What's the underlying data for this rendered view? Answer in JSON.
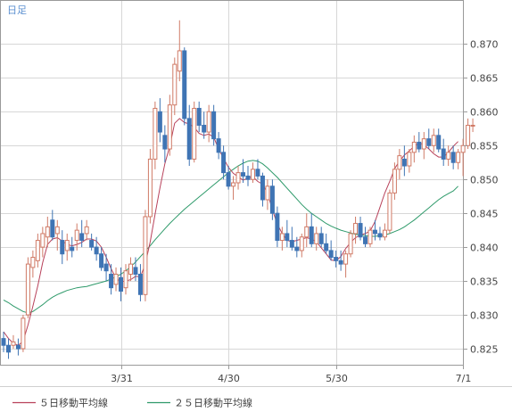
{
  "chart_data": {
    "type": "candlestick",
    "period_label": "日足",
    "x_tick_labels": [
      "3/31",
      "4/30",
      "5/30",
      "7/1"
    ],
    "y_ticks": [
      0.825,
      0.83,
      0.835,
      0.84,
      0.845,
      0.85,
      0.855,
      0.86,
      0.865,
      0.87
    ],
    "y_tick_labels": [
      "0.825",
      "0.830",
      "0.835",
      "0.840",
      "0.845",
      "0.850",
      "0.855",
      "0.860",
      "0.865",
      "0.870"
    ],
    "ylim": [
      0.8225,
      0.8765
    ],
    "grid": true,
    "legend_position": "bottom-left",
    "colors": {
      "up": "#d07a66",
      "down": "#3f74b4",
      "ma5": "#b8415a",
      "ma25": "#2e9a6a",
      "grid": "#d7d7d7",
      "frame": "#9a9a9a"
    },
    "series": [
      {
        "name": "５日移動平均線",
        "color": "#b8415a"
      },
      {
        "name": "２５日移動平均線",
        "color": "#2e9a6a"
      }
    ],
    "candles": [
      [
        0.8265,
        0.8275,
        0.8245,
        0.8255
      ],
      [
        0.8255,
        0.8265,
        0.8235,
        0.8245
      ],
      [
        0.8255,
        0.827,
        0.825,
        0.826
      ],
      [
        0.8255,
        0.8265,
        0.824,
        0.825
      ],
      [
        0.825,
        0.83,
        0.8245,
        0.8295
      ],
      [
        0.83,
        0.8385,
        0.8295,
        0.8375
      ],
      [
        0.837,
        0.8395,
        0.8355,
        0.8385
      ],
      [
        0.838,
        0.842,
        0.837,
        0.841
      ],
      [
        0.84,
        0.843,
        0.8385,
        0.842
      ],
      [
        0.8415,
        0.8445,
        0.84,
        0.843
      ],
      [
        0.844,
        0.8455,
        0.841,
        0.8415
      ],
      [
        0.842,
        0.844,
        0.8395,
        0.843
      ],
      [
        0.841,
        0.8425,
        0.8375,
        0.839
      ],
      [
        0.8395,
        0.842,
        0.838,
        0.841
      ],
      [
        0.84,
        0.8415,
        0.8385,
        0.8395
      ],
      [
        0.841,
        0.8435,
        0.8395,
        0.8425
      ],
      [
        0.842,
        0.844,
        0.84,
        0.841
      ],
      [
        0.842,
        0.844,
        0.841,
        0.843
      ],
      [
        0.841,
        0.842,
        0.8395,
        0.84
      ],
      [
        0.84,
        0.8415,
        0.838,
        0.839
      ],
      [
        0.839,
        0.84,
        0.8365,
        0.837
      ],
      [
        0.8375,
        0.839,
        0.835,
        0.8365
      ],
      [
        0.836,
        0.8375,
        0.833,
        0.834
      ],
      [
        0.8345,
        0.837,
        0.8335,
        0.836
      ],
      [
        0.8355,
        0.837,
        0.832,
        0.8335
      ],
      [
        0.834,
        0.8375,
        0.833,
        0.8365
      ],
      [
        0.836,
        0.8385,
        0.835,
        0.8375
      ],
      [
        0.837,
        0.8385,
        0.835,
        0.836
      ],
      [
        0.836,
        0.8375,
        0.832,
        0.833
      ],
      [
        0.833,
        0.8455,
        0.832,
        0.8445
      ],
      [
        0.8445,
        0.8545,
        0.8435,
        0.853
      ],
      [
        0.853,
        0.8615,
        0.8515,
        0.8605
      ],
      [
        0.86,
        0.862,
        0.8555,
        0.857
      ],
      [
        0.8565,
        0.858,
        0.8525,
        0.8545
      ],
      [
        0.8545,
        0.8625,
        0.8535,
        0.861
      ],
      [
        0.861,
        0.868,
        0.8595,
        0.867
      ],
      [
        0.866,
        0.8735,
        0.8645,
        0.869
      ],
      [
        0.869,
        0.8695,
        0.858,
        0.859
      ],
      [
        0.859,
        0.861,
        0.852,
        0.853
      ],
      [
        0.853,
        0.8615,
        0.8525,
        0.8605
      ],
      [
        0.8605,
        0.8615,
        0.857,
        0.858
      ],
      [
        0.858,
        0.86,
        0.856,
        0.857
      ],
      [
        0.857,
        0.861,
        0.8555,
        0.86
      ],
      [
        0.86,
        0.861,
        0.855,
        0.856
      ],
      [
        0.856,
        0.857,
        0.853,
        0.854
      ],
      [
        0.854,
        0.855,
        0.85,
        0.851
      ],
      [
        0.851,
        0.852,
        0.8485,
        0.849
      ],
      [
        0.849,
        0.8505,
        0.847,
        0.8495
      ],
      [
        0.8495,
        0.852,
        0.8485,
        0.851
      ],
      [
        0.851,
        0.853,
        0.8495,
        0.8505
      ],
      [
        0.8505,
        0.852,
        0.849,
        0.85
      ],
      [
        0.85,
        0.8525,
        0.8495,
        0.8515
      ],
      [
        0.8515,
        0.853,
        0.85,
        0.8505
      ],
      [
        0.8505,
        0.851,
        0.846,
        0.847
      ],
      [
        0.847,
        0.85,
        0.8455,
        0.849
      ],
      [
        0.849,
        0.85,
        0.844,
        0.845
      ],
      [
        0.845,
        0.846,
        0.84,
        0.841
      ],
      [
        0.841,
        0.843,
        0.8395,
        0.842
      ],
      [
        0.842,
        0.844,
        0.84,
        0.841
      ],
      [
        0.841,
        0.843,
        0.8395,
        0.84
      ],
      [
        0.84,
        0.8415,
        0.8385,
        0.8395
      ],
      [
        0.8395,
        0.842,
        0.8385,
        0.8415
      ],
      [
        0.8415,
        0.845,
        0.84,
        0.843
      ],
      [
        0.843,
        0.845,
        0.84,
        0.8405
      ],
      [
        0.8405,
        0.843,
        0.8395,
        0.842
      ],
      [
        0.842,
        0.843,
        0.84,
        0.8405
      ],
      [
        0.8405,
        0.842,
        0.839,
        0.8395
      ],
      [
        0.8395,
        0.841,
        0.838,
        0.8385
      ],
      [
        0.8385,
        0.8395,
        0.837,
        0.838
      ],
      [
        0.838,
        0.8395,
        0.8365,
        0.8375
      ],
      [
        0.8375,
        0.8395,
        0.8355,
        0.839
      ],
      [
        0.839,
        0.8425,
        0.8385,
        0.842
      ],
      [
        0.842,
        0.8445,
        0.8405,
        0.8435
      ],
      [
        0.8435,
        0.8445,
        0.841,
        0.8415
      ],
      [
        0.8415,
        0.843,
        0.84,
        0.8405
      ],
      [
        0.8405,
        0.843,
        0.84,
        0.8425
      ],
      [
        0.8425,
        0.844,
        0.841,
        0.842
      ],
      [
        0.842,
        0.843,
        0.841,
        0.8415
      ],
      [
        0.8415,
        0.8435,
        0.841,
        0.8425
      ],
      [
        0.8425,
        0.8485,
        0.842,
        0.848
      ],
      [
        0.848,
        0.8525,
        0.847,
        0.8515
      ],
      [
        0.8515,
        0.8545,
        0.85,
        0.8535
      ],
      [
        0.853,
        0.855,
        0.8505,
        0.852
      ],
      [
        0.852,
        0.8545,
        0.851,
        0.854
      ],
      [
        0.854,
        0.8565,
        0.8525,
        0.8555
      ],
      [
        0.8555,
        0.857,
        0.854,
        0.8545
      ],
      [
        0.8545,
        0.857,
        0.853,
        0.856
      ],
      [
        0.856,
        0.8575,
        0.8545,
        0.855
      ],
      [
        0.855,
        0.8575,
        0.854,
        0.8565
      ],
      [
        0.8565,
        0.8575,
        0.854,
        0.8545
      ],
      [
        0.8545,
        0.856,
        0.852,
        0.853
      ],
      [
        0.853,
        0.855,
        0.852,
        0.854
      ],
      [
        0.854,
        0.855,
        0.8515,
        0.8525
      ],
      [
        0.8525,
        0.8545,
        0.8515,
        0.854
      ],
      [
        0.854,
        0.856,
        0.8505,
        0.855
      ],
      [
        0.855,
        0.859,
        0.8545,
        0.858
      ],
      [
        0.858,
        0.859,
        0.857,
        0.858
      ]
    ],
    "ma5": [
      0.8275,
      0.8265,
      0.8258,
      0.8255,
      0.8261,
      0.8285,
      0.8313,
      0.8343,
      0.8377,
      0.8404,
      0.8412,
      0.8414,
      0.8409,
      0.8404,
      0.8402,
      0.8404,
      0.8407,
      0.8412,
      0.8412,
      0.8409,
      0.84,
      0.8385,
      0.8368,
      0.8354,
      0.8349,
      0.835,
      0.8352,
      0.8357,
      0.8356,
      0.8375,
      0.8408,
      0.8449,
      0.8488,
      0.8523,
      0.8549,
      0.8583,
      0.859,
      0.8584,
      0.8582,
      0.8577,
      0.8568,
      0.8565,
      0.8567,
      0.8562,
      0.8545,
      0.8531,
      0.8518,
      0.8509,
      0.8504,
      0.8499,
      0.8502,
      0.8504,
      0.8497,
      0.8493,
      0.848,
      0.8455,
      0.8434,
      0.842,
      0.841,
      0.8408,
      0.841,
      0.8412,
      0.8414,
      0.8412,
      0.8408,
      0.8399,
      0.839,
      0.8381,
      0.838,
      0.8386,
      0.8398,
      0.8407,
      0.8414,
      0.8418,
      0.842,
      0.8424,
      0.8438,
      0.8459,
      0.848,
      0.8497,
      0.8516,
      0.8527,
      0.8536,
      0.8542,
      0.8549,
      0.8554,
      0.8551,
      0.8545,
      0.8538,
      0.8533,
      0.8533,
      0.854,
      0.8549,
      0.8556
    ],
    "ma25": [
      0.8322,
      0.8318,
      0.8313,
      0.8309,
      0.8305,
      0.8303,
      0.8305,
      0.831,
      0.8315,
      0.8321,
      0.8326,
      0.833,
      0.8333,
      0.8336,
      0.8338,
      0.834,
      0.8341,
      0.8342,
      0.8344,
      0.8346,
      0.8348,
      0.835,
      0.8353,
      0.8356,
      0.836,
      0.8365,
      0.8371,
      0.8378,
      0.8386,
      0.8394,
      0.8402,
      0.8411,
      0.8419,
      0.8427,
      0.8435,
      0.8442,
      0.8449,
      0.8456,
      0.8462,
      0.8468,
      0.8474,
      0.848,
      0.8486,
      0.8492,
      0.8498,
      0.8504,
      0.851,
      0.8515,
      0.852,
      0.8524,
      0.8527,
      0.8528,
      0.8527,
      0.8523,
      0.8517,
      0.851,
      0.8503,
      0.8495,
      0.8487,
      0.8479,
      0.8471,
      0.8463,
      0.8456,
      0.845,
      0.8445,
      0.844,
      0.8435,
      0.8431,
      0.8428,
      0.8425,
      0.8423,
      0.8421,
      0.8419,
      0.8418,
      0.8417,
      0.8416,
      0.8416,
      0.8417,
      0.8418,
      0.842,
      0.8423,
      0.8426,
      0.843,
      0.8435,
      0.844,
      0.8446,
      0.8452,
      0.8458,
      0.8464,
      0.847,
      0.8475,
      0.8479,
      0.8483,
      0.849
    ]
  }
}
